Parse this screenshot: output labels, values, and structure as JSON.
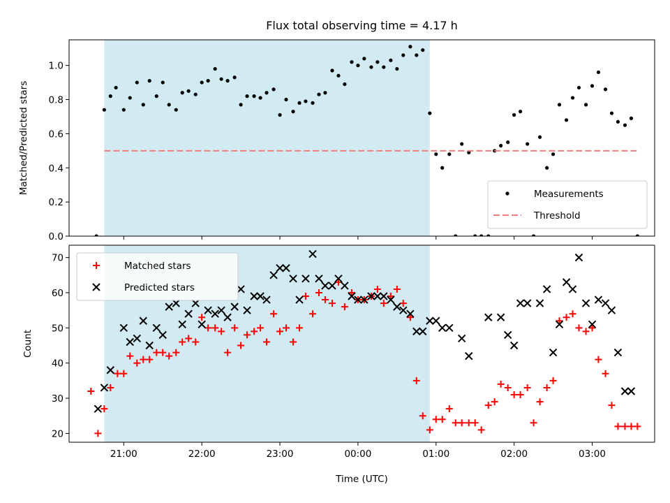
{
  "figure": {
    "title": "Flux total observing time = 4.17 h",
    "xlabel": "Time (UTC)"
  },
  "colors": {
    "shade": "#add8e6",
    "threshold": "#f08080",
    "matched": "#ff0000",
    "predicted": "#000000",
    "measurement": "#000000"
  },
  "chart_data": [
    {
      "type": "scatter",
      "ylabel": "Matched/Predicted stars",
      "ylim": [
        0,
        1.15
      ],
      "yticks": [
        0.0,
        0.2,
        0.4,
        0.6,
        0.8,
        1.0
      ],
      "xlim": [
        20.3,
        27.8
      ],
      "xticks": [
        21,
        22,
        23,
        24,
        25,
        26,
        27
      ],
      "xtick_labels": [
        "21:00",
        "22:00",
        "23:00",
        "00:00",
        "01:00",
        "02:00",
        "03:00"
      ],
      "shaded_span": [
        20.75,
        24.92
      ],
      "threshold": 0.5,
      "legend": {
        "position": "lower-right",
        "entries": [
          "Measurements",
          "Threshold"
        ]
      },
      "series": [
        {
          "name": "Measurements",
          "x": [
            20.65,
            20.75,
            20.83,
            20.9,
            21.0,
            21.08,
            21.17,
            21.25,
            21.33,
            21.42,
            21.5,
            21.58,
            21.67,
            21.75,
            21.83,
            21.92,
            22.0,
            22.08,
            22.17,
            22.25,
            22.33,
            22.42,
            22.5,
            22.58,
            22.67,
            22.75,
            22.83,
            22.92,
            23.0,
            23.08,
            23.17,
            23.25,
            23.33,
            23.42,
            23.5,
            23.58,
            23.67,
            23.75,
            23.83,
            23.92,
            24.0,
            24.08,
            24.17,
            24.25,
            24.33,
            24.42,
            24.5,
            24.58,
            24.67,
            24.75,
            24.83,
            24.92,
            25.0,
            25.08,
            25.17,
            25.25,
            25.33,
            25.42,
            25.5,
            25.58,
            25.67,
            25.75,
            25.83,
            25.92,
            26.0,
            26.08,
            26.17,
            26.25,
            26.33,
            26.42,
            26.5,
            26.58,
            26.67,
            26.75,
            26.83,
            26.92,
            27.0,
            27.08,
            27.17,
            27.25,
            27.33,
            27.42,
            27.5,
            27.58
          ],
          "y": [
            0.0,
            0.74,
            0.82,
            0.87,
            0.74,
            0.81,
            0.9,
            0.77,
            0.91,
            0.82,
            0.9,
            0.77,
            0.74,
            0.84,
            0.85,
            0.83,
            0.9,
            0.91,
            0.98,
            0.92,
            0.91,
            0.93,
            0.77,
            0.82,
            0.82,
            0.81,
            0.84,
            0.86,
            0.71,
            0.8,
            0.73,
            0.78,
            0.79,
            0.78,
            0.83,
            0.84,
            0.97,
            0.94,
            0.89,
            1.02,
            1.0,
            1.04,
            0.99,
            1.02,
            0.99,
            1.03,
            0.98,
            1.06,
            1.11,
            1.06,
            1.09,
            0.72,
            0.48,
            0.4,
            0.48,
            0.0,
            0.54,
            0.49,
            0.0,
            0.0,
            0.0,
            0.5,
            0.53,
            0.55,
            0.71,
            0.73,
            0.54,
            0.0,
            0.58,
            0.4,
            0.48,
            0.77,
            0.68,
            0.81,
            0.87,
            0.77,
            0.88,
            0.96,
            0.86,
            0.72,
            0.67,
            0.65,
            0.69,
            0.0
          ]
        },
        {
          "name": "Threshold",
          "x": [
            20.75,
            27.58
          ],
          "y": [
            0.5,
            0.5
          ]
        }
      ]
    },
    {
      "type": "scatter",
      "ylabel": "Count",
      "ylim": [
        17.5,
        73.5
      ],
      "yticks": [
        20,
        30,
        40,
        50,
        60,
        70
      ],
      "xlim": [
        20.3,
        27.8
      ],
      "xticks": [
        21,
        22,
        23,
        24,
        25,
        26,
        27
      ],
      "xtick_labels": [
        "21:00",
        "22:00",
        "23:00",
        "00:00",
        "01:00",
        "02:00",
        "03:00"
      ],
      "shaded_span": [
        20.75,
        24.92
      ],
      "legend": {
        "position": "upper-left",
        "entries": [
          "Matched stars",
          "Predicted stars"
        ]
      },
      "series": [
        {
          "name": "Matched stars",
          "x": [
            20.58,
            20.67,
            20.75,
            20.83,
            20.92,
            21.0,
            21.08,
            21.17,
            21.25,
            21.33,
            21.42,
            21.5,
            21.58,
            21.67,
            21.75,
            21.83,
            21.92,
            22.0,
            22.08,
            22.17,
            22.25,
            22.33,
            22.42,
            22.5,
            22.58,
            22.67,
            22.75,
            22.83,
            22.92,
            23.0,
            23.08,
            23.17,
            23.25,
            23.33,
            23.42,
            23.5,
            23.58,
            23.67,
            23.75,
            23.83,
            23.92,
            24.0,
            24.08,
            24.17,
            24.25,
            24.33,
            24.42,
            24.5,
            24.58,
            24.67,
            24.75,
            24.83,
            24.92,
            25.0,
            25.08,
            25.17,
            25.25,
            25.33,
            25.42,
            25.5,
            25.58,
            25.67,
            25.75,
            25.83,
            25.92,
            26.0,
            26.08,
            26.17,
            26.25,
            26.33,
            26.42,
            26.5,
            26.58,
            26.67,
            26.75,
            26.83,
            26.92,
            27.0,
            27.08,
            27.17,
            27.25,
            27.33,
            27.42,
            27.5,
            27.58
          ],
          "y": [
            32,
            20,
            27,
            33,
            37,
            37,
            42,
            40,
            41,
            41,
            43,
            43,
            42,
            43,
            46,
            47,
            46,
            53,
            50,
            50,
            49,
            43,
            50,
            45,
            48,
            49,
            50,
            46,
            54,
            49,
            50,
            46,
            50,
            59,
            54,
            60,
            58,
            57,
            63,
            56,
            60,
            58,
            58,
            59,
            61,
            57,
            59,
            61,
            57,
            53,
            35,
            25,
            21,
            24,
            24,
            27,
            23,
            23,
            23,
            23,
            21,
            28,
            29,
            34,
            33,
            31,
            31,
            33,
            23,
            29,
            33,
            35,
            52,
            53,
            54,
            50,
            49,
            50,
            41,
            37,
            28,
            22,
            22,
            22,
            22
          ]
        },
        {
          "name": "Predicted stars",
          "x": [
            20.67,
            20.75,
            20.83,
            21.0,
            21.08,
            21.17,
            21.25,
            21.33,
            21.42,
            21.5,
            21.58,
            21.67,
            21.75,
            21.83,
            21.92,
            22.0,
            22.08,
            22.17,
            22.25,
            22.33,
            22.42,
            22.5,
            22.58,
            22.67,
            22.75,
            22.83,
            22.92,
            23.0,
            23.08,
            23.17,
            23.25,
            23.33,
            23.42,
            23.5,
            23.58,
            23.67,
            23.75,
            23.83,
            23.92,
            24.0,
            24.08,
            24.17,
            24.25,
            24.33,
            24.42,
            24.5,
            24.58,
            24.67,
            24.75,
            24.83,
            24.92,
            25.0,
            25.08,
            25.17,
            25.33,
            25.42,
            25.67,
            25.83,
            25.92,
            26.0,
            26.08,
            26.17,
            26.33,
            26.42,
            26.5,
            26.58,
            26.67,
            26.75,
            26.83,
            26.92,
            27.0,
            27.08,
            27.17,
            27.25,
            27.33,
            27.42,
            27.5
          ],
          "y": [
            27,
            33,
            38,
            50,
            46,
            47,
            52,
            45,
            50,
            48,
            56,
            57,
            51,
            54,
            57,
            51,
            55,
            54,
            55,
            53,
            56,
            61,
            55,
            59,
            59,
            58,
            65,
            67,
            67,
            64,
            58,
            64,
            71,
            64,
            62,
            62,
            64,
            62,
            59,
            58,
            58,
            59,
            59,
            59,
            58,
            56,
            55,
            54,
            49,
            49,
            52,
            52,
            50,
            50,
            47,
            42,
            53,
            53,
            48,
            45,
            57,
            57,
            57,
            61,
            43,
            51,
            63,
            61,
            70,
            57,
            51,
            58,
            57,
            55,
            43,
            32,
            32
          ]
        }
      ]
    }
  ]
}
